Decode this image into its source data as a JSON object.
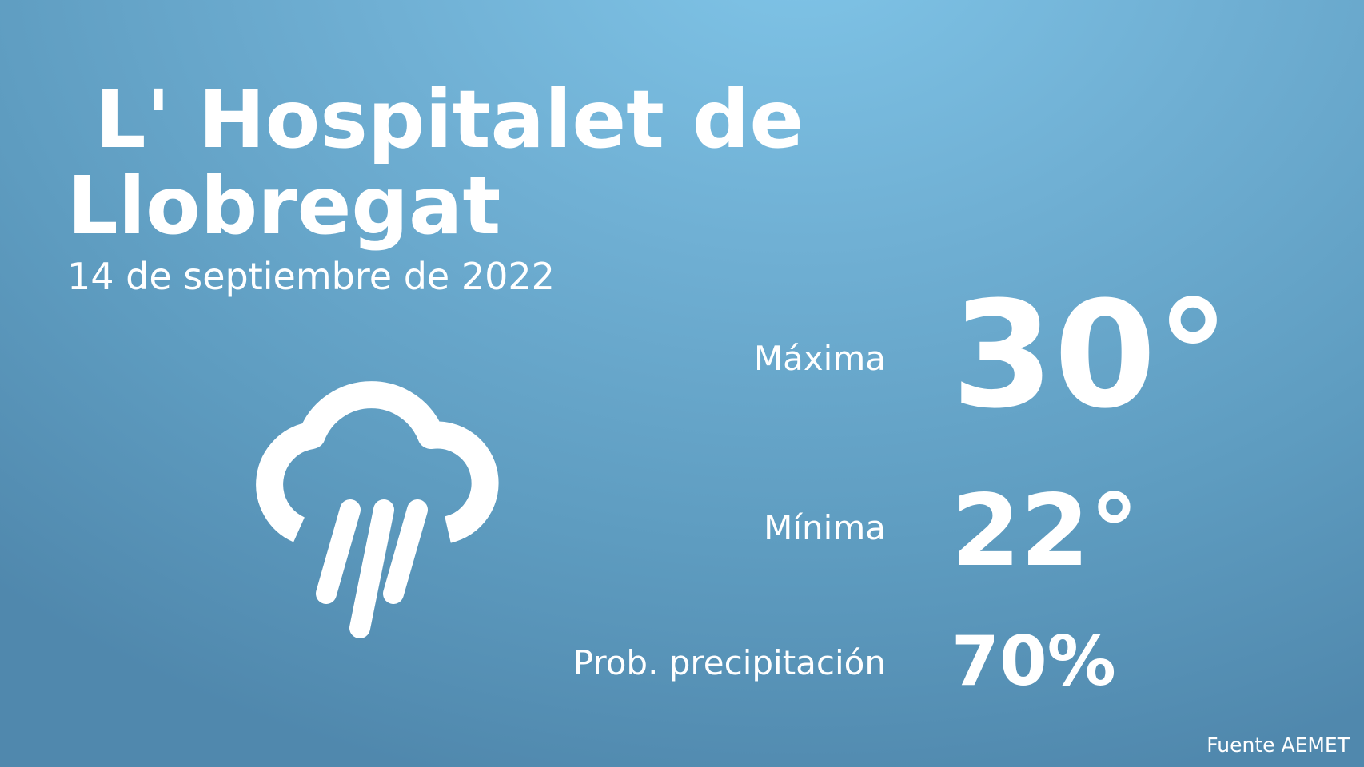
{
  "location": {
    "name": " L' Hospitalet de Llobregat",
    "date": "14 de septiembre de 2022"
  },
  "weather_icon": "rain-cloud-icon",
  "forecast": {
    "max_label": "Máxima",
    "max_value": "30°",
    "min_label": "Mínima",
    "min_value": "22°",
    "precip_label": "Prob. precipitación",
    "precip_value": "70%"
  },
  "source": "Fuente AEMET",
  "colors": {
    "background_top": "#80c5e8",
    "background_bottom": "#5088ad",
    "text": "#ffffff"
  }
}
